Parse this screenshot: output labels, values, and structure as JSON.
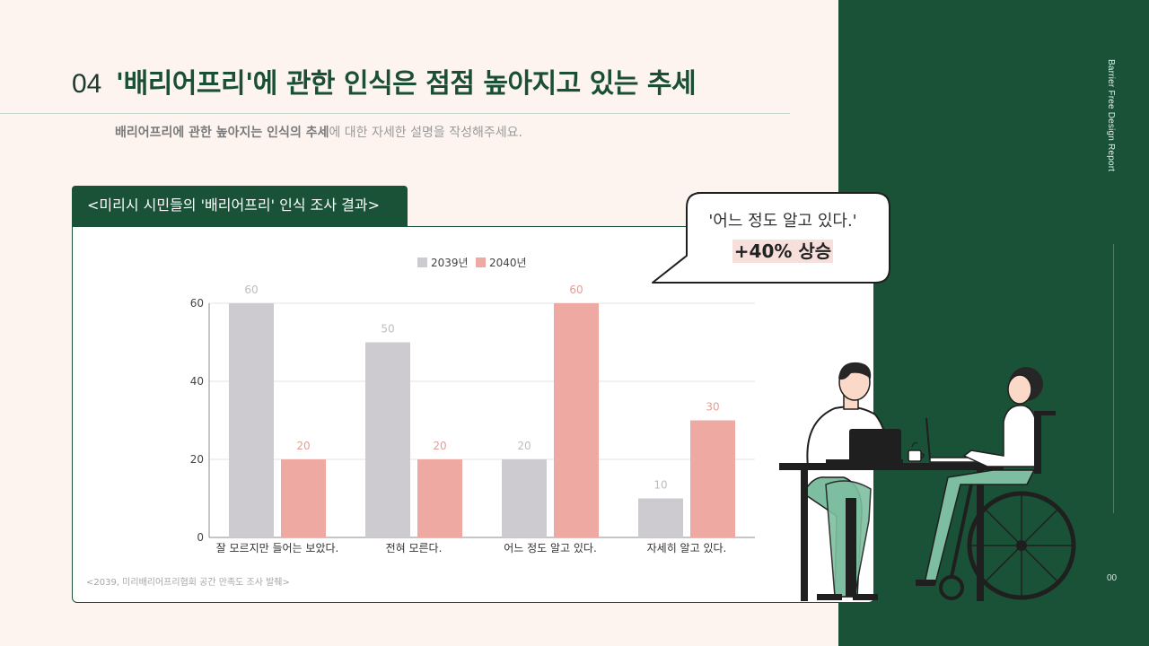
{
  "header": {
    "number": "04",
    "title": "'배리어프리'에 관한 인식은 점점 높아지고 있는 추세",
    "subtitle_bold1": "배리어프리에 관한 높아지는 인식의 추세",
    "subtitle_rest": "에 대한 자세한 설명을 작성해주세요."
  },
  "side": {
    "vertical_text": "Barrier Free Design Report",
    "page_number": "00"
  },
  "chart_tab": {
    "label": "<미리시 시민들의 '배리어프리' 인식 조사 결과>"
  },
  "source_note": "<2039, 미리배리어프리협회 공간 만족도 조사 발췌>",
  "callout": {
    "line1": "'어느 정도 알고 있다.'",
    "line2": "+40% 상승"
  },
  "colors": {
    "brand_green": "#195236",
    "series_2039": "#cdcbd0",
    "series_2040": "#eea9a2",
    "background": "#fdf4f0"
  },
  "chart_data": {
    "type": "bar",
    "title": "",
    "xlabel": "",
    "ylabel": "",
    "categories": [
      "잘 모르지만 들어는 보았다.",
      "전혀 모른다.",
      "어느 정도 알고 있다.",
      "자세히 알고 있다."
    ],
    "series": [
      {
        "name": "2039년",
        "values": [
          60,
          50,
          20,
          10
        ],
        "color": "#cdcbd0"
      },
      {
        "name": "2040년",
        "values": [
          20,
          20,
          60,
          30
        ],
        "color": "#eea9a2"
      }
    ],
    "ylim": [
      0,
      60
    ],
    "yticks": [
      0,
      20,
      40,
      60
    ],
    "grid": true,
    "legend": "top-center",
    "data_labels": true
  },
  "illustration": {
    "coffee_icon": "coffee-cup-icon",
    "laptop_icon": "laptop-icon"
  }
}
